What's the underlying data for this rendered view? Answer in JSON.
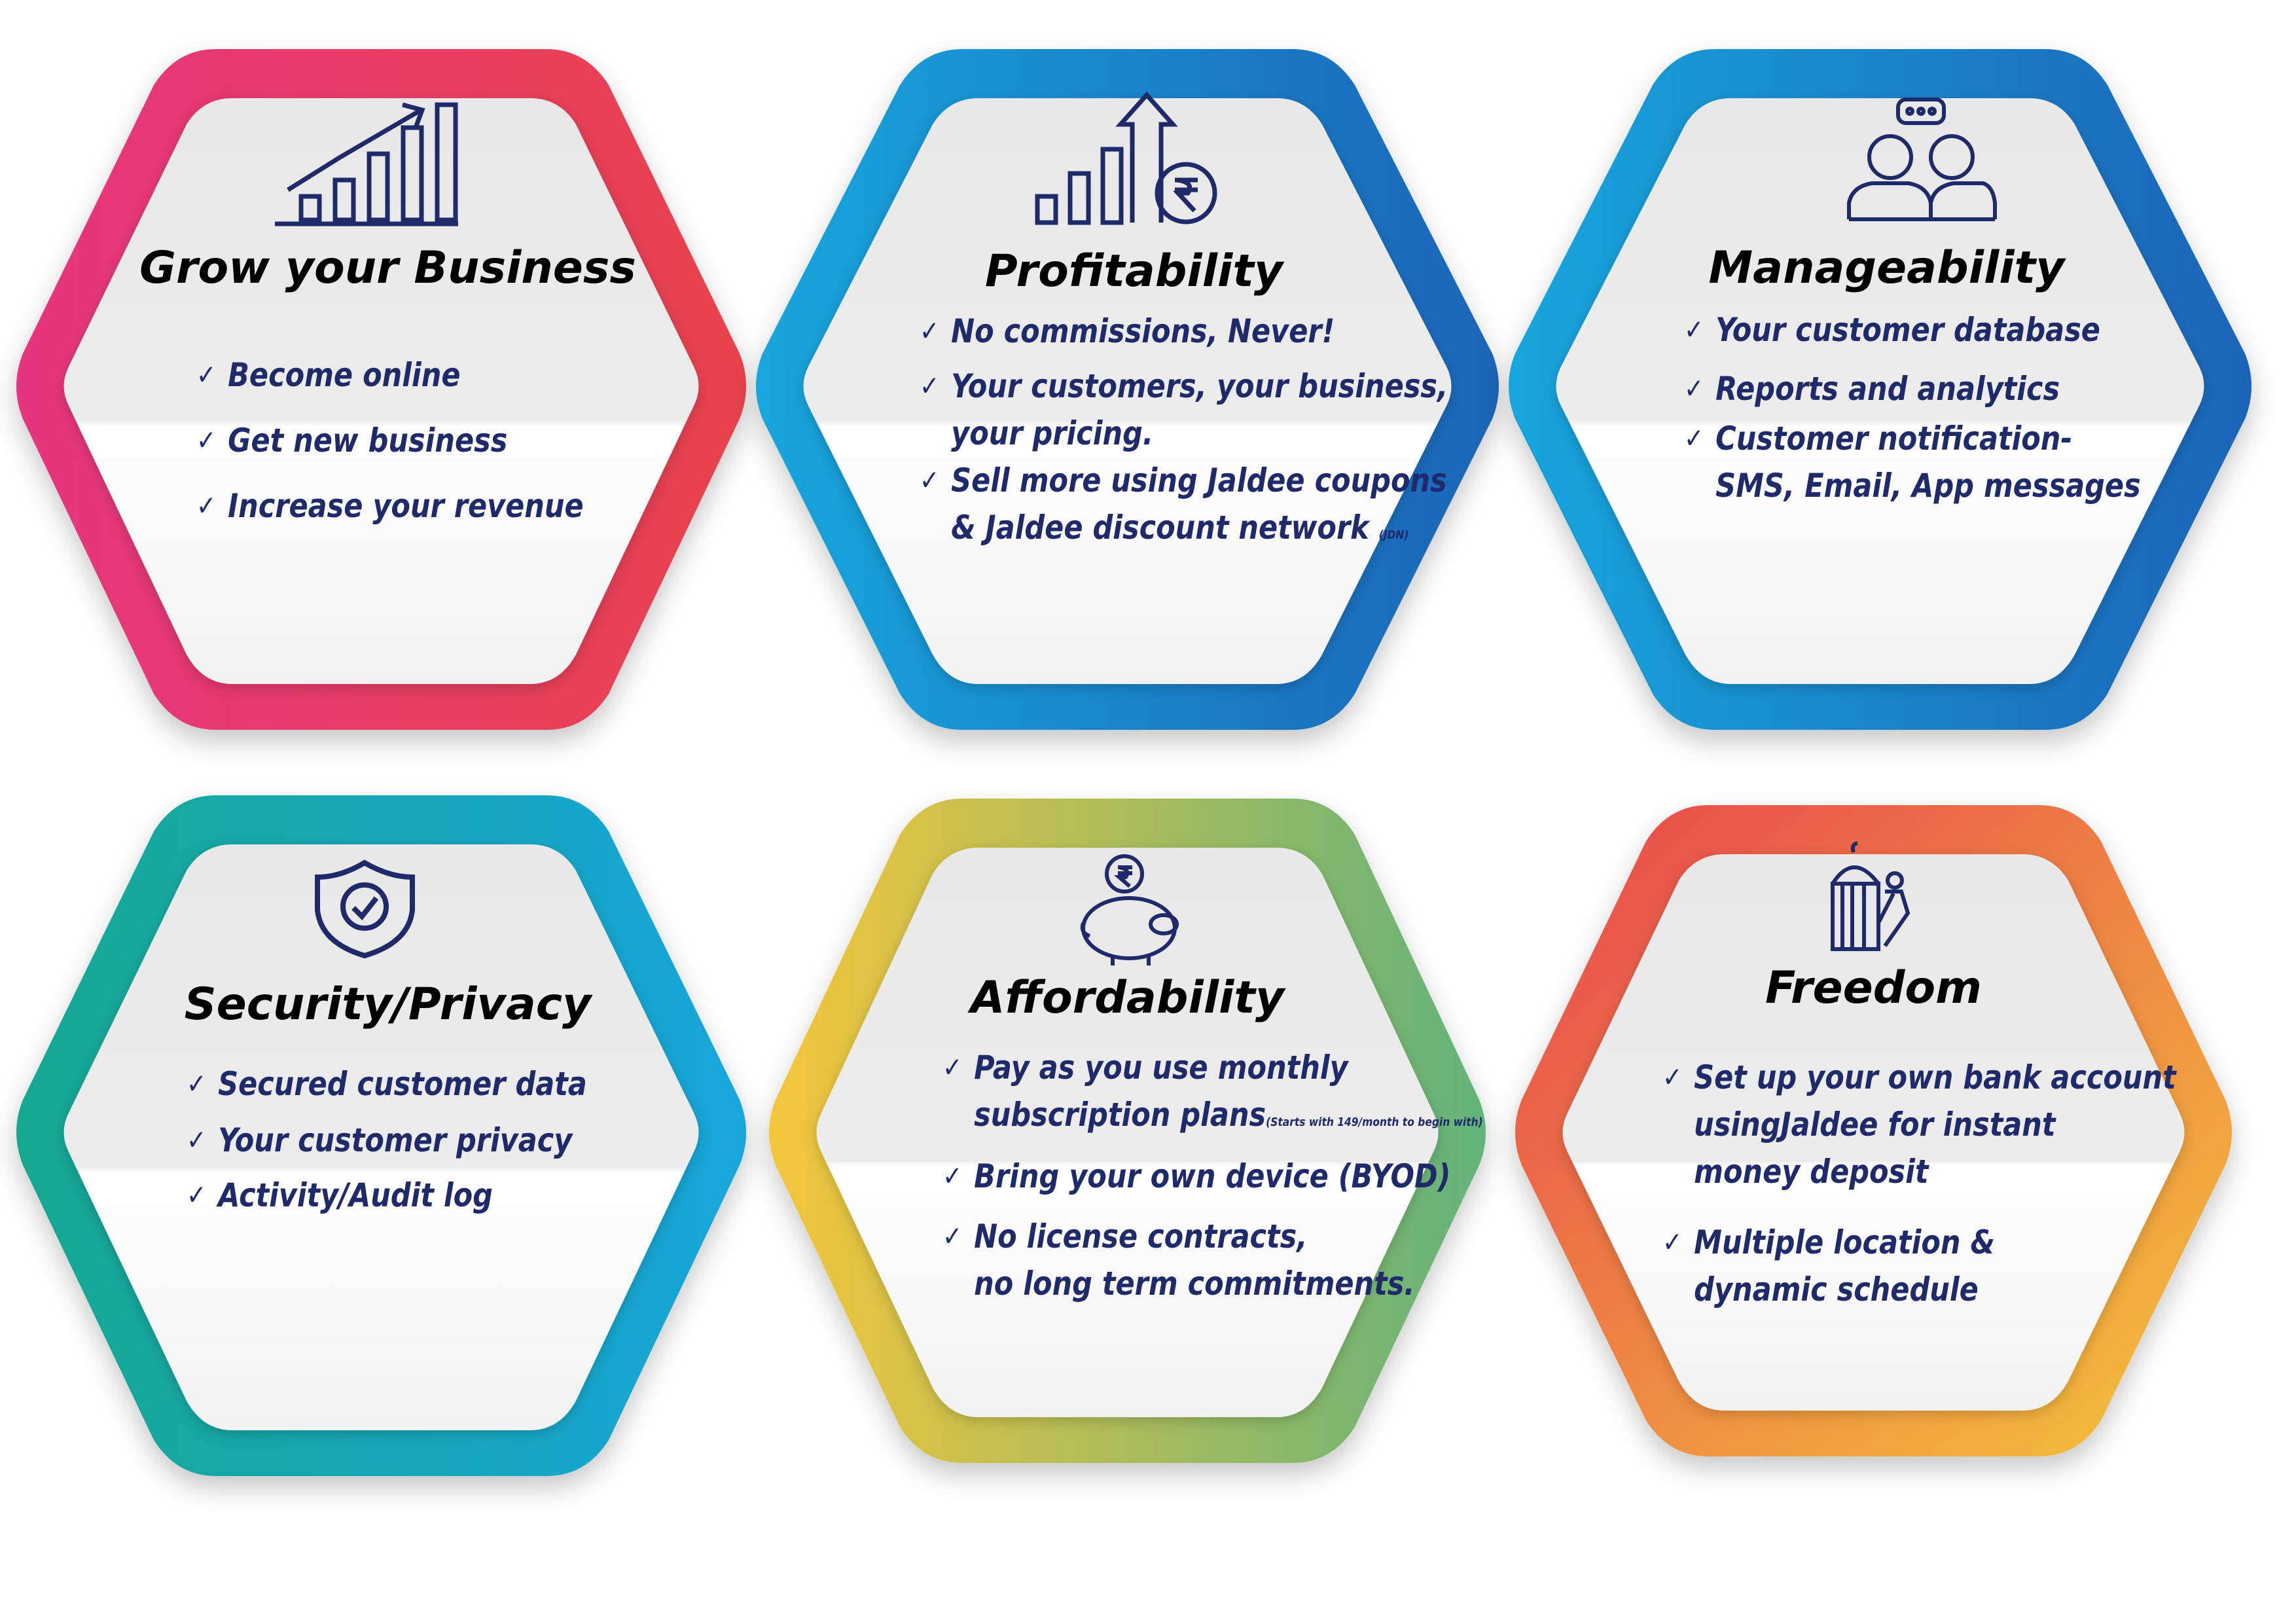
{
  "colors": {
    "pink": "#e6357f",
    "red": "#e8434c",
    "blue": "#1a64b8",
    "cyan": "#19a6dc",
    "teal": "#13a890",
    "yellow": "#f4c63b",
    "green": "#62b37b",
    "orange": "#f08b34",
    "text": "#1f2a6b"
  },
  "cards": [
    {
      "title": "Grow your Business",
      "icon": "growth-chart-icon",
      "points": [
        {
          "text": "Become online"
        },
        {
          "text": "Get new business"
        },
        {
          "text": "Increase your revenue"
        }
      ]
    },
    {
      "title": "Profitability",
      "icon": "rupee-growth-icon",
      "points": [
        {
          "text": "No commissions, Never!"
        },
        {
          "text": "Your customers, your business,",
          "text2": "your pricing."
        },
        {
          "text": "Sell more using Jaldee coupons",
          "text2": "& Jaldee discount network",
          "note": "(JDN)"
        }
      ]
    },
    {
      "title": "Manageability",
      "icon": "team-chat-icon",
      "points": [
        {
          "text": "Your customer database"
        },
        {
          "text": "Reports and analytics"
        },
        {
          "text": "Customer notification-",
          "text2": "SMS, Email, App messages"
        }
      ]
    },
    {
      "title": "Security/Privacy",
      "icon": "shield-check-icon",
      "points": [
        {
          "text": "Secured customer data"
        },
        {
          "text": "Your customer privacy"
        },
        {
          "text": "Activity/Audit log"
        }
      ]
    },
    {
      "title": "Affordability",
      "icon": "piggy-bank-icon",
      "points": [
        {
          "text": "Pay as you use monthly",
          "text2": "subscription plans",
          "note": "(Starts with 149/month to begin with)"
        },
        {
          "text": "Bring your own device (BYOD)"
        },
        {
          "text": "No license contracts,",
          "text2": "no long term commitments."
        }
      ]
    },
    {
      "title": "Freedom",
      "icon": "cage-escape-icon",
      "points": [
        {
          "text": "Set up your own bank account",
          "text2": "usingJaldee for instant",
          "text3": "money deposit"
        },
        {
          "text": "Multiple location &",
          "text2": "dynamic schedule"
        }
      ]
    }
  ]
}
